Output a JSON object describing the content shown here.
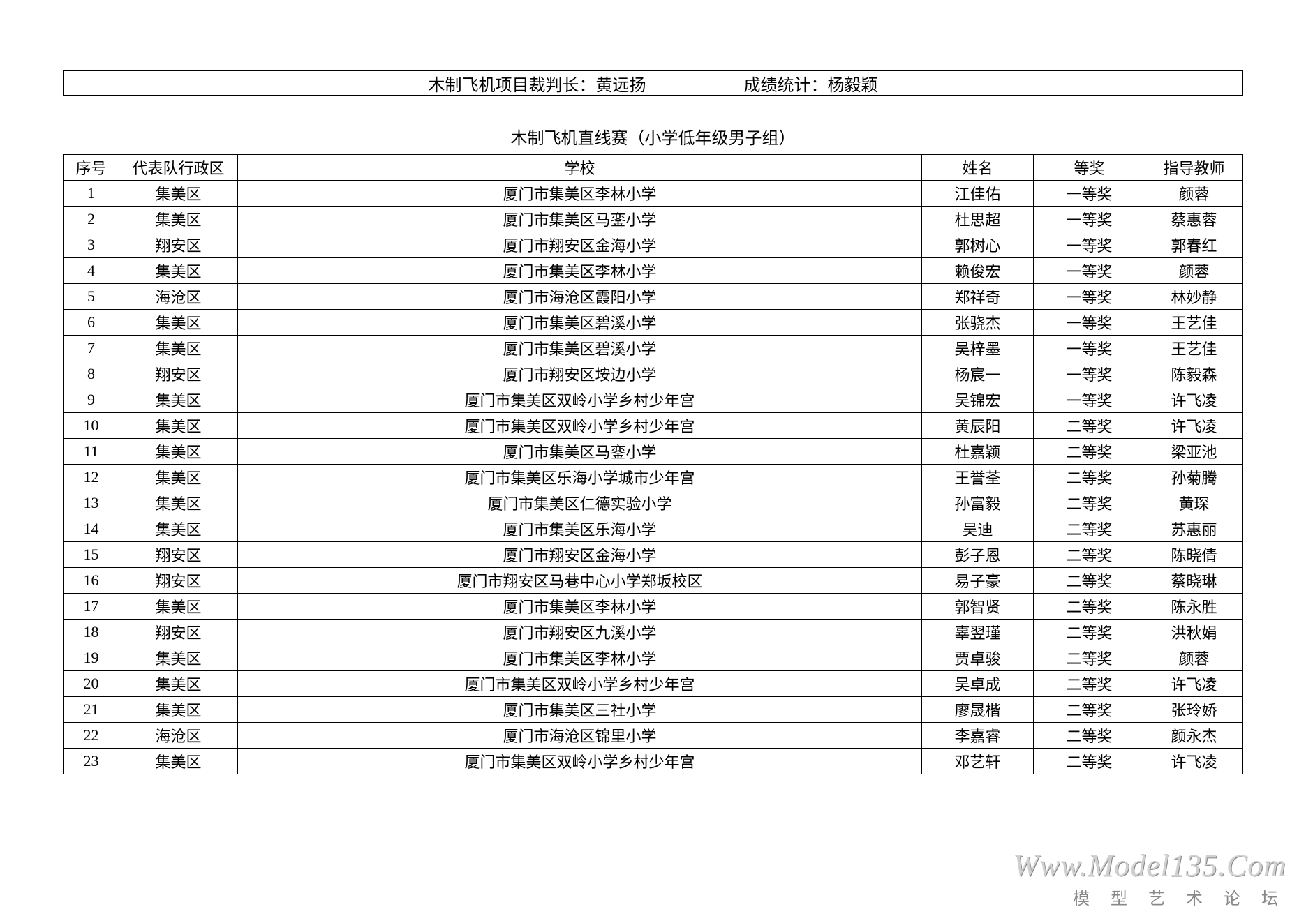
{
  "header": {
    "judge_label": "木制飞机项目裁判长：",
    "judge_name": "黄远扬",
    "stats_label": "成绩统计：",
    "stats_name": "杨毅颖"
  },
  "title": "木制飞机直线赛（小学低年级男子组）",
  "columns": {
    "num": "序号",
    "district": "代表队行政区",
    "school": "学校",
    "name": "姓名",
    "award": "等奖",
    "teacher": "指导教师"
  },
  "rows": [
    {
      "num": "1",
      "district": "集美区",
      "school": "厦门市集美区李林小学",
      "name": "江佳佑",
      "award": "一等奖",
      "teacher": "颜蓉"
    },
    {
      "num": "2",
      "district": "集美区",
      "school": "厦门市集美区马銮小学",
      "name": "杜思超",
      "award": "一等奖",
      "teacher": "蔡惠蓉"
    },
    {
      "num": "3",
      "district": "翔安区",
      "school": "厦门市翔安区金海小学",
      "name": "郭树心",
      "award": "一等奖",
      "teacher": "郭春红"
    },
    {
      "num": "4",
      "district": "集美区",
      "school": "厦门市集美区李林小学",
      "name": "赖俊宏",
      "award": "一等奖",
      "teacher": "颜蓉"
    },
    {
      "num": "5",
      "district": "海沧区",
      "school": "厦门市海沧区霞阳小学",
      "name": "郑祥奇",
      "award": "一等奖",
      "teacher": "林妙静"
    },
    {
      "num": "6",
      "district": "集美区",
      "school": "厦门市集美区碧溪小学",
      "name": "张骁杰",
      "award": "一等奖",
      "teacher": "王艺佳"
    },
    {
      "num": "7",
      "district": "集美区",
      "school": "厦门市集美区碧溪小学",
      "name": "吴梓墨",
      "award": "一等奖",
      "teacher": "王艺佳"
    },
    {
      "num": "8",
      "district": "翔安区",
      "school": "厦门市翔安区垵边小学",
      "name": "杨宸一",
      "award": "一等奖",
      "teacher": "陈毅森"
    },
    {
      "num": "9",
      "district": "集美区",
      "school": "厦门市集美区双岭小学乡村少年宫",
      "name": "吴锦宏",
      "award": "一等奖",
      "teacher": "许飞凌"
    },
    {
      "num": "10",
      "district": "集美区",
      "school": "厦门市集美区双岭小学乡村少年宫",
      "name": "黄辰阳",
      "award": "二等奖",
      "teacher": "许飞凌"
    },
    {
      "num": "11",
      "district": "集美区",
      "school": "厦门市集美区马銮小学",
      "name": "杜嘉颖",
      "award": "二等奖",
      "teacher": "梁亚池"
    },
    {
      "num": "12",
      "district": "集美区",
      "school": "厦门市集美区乐海小学城市少年宫",
      "name": "王誉荃",
      "award": "二等奖",
      "teacher": "孙菊腾"
    },
    {
      "num": "13",
      "district": "集美区",
      "school": "厦门市集美区仁德实验小学",
      "name": "孙富毅",
      "award": "二等奖",
      "teacher": "黄琛"
    },
    {
      "num": "14",
      "district": "集美区",
      "school": "厦门市集美区乐海小学",
      "name": "吴迪",
      "award": "二等奖",
      "teacher": "苏惠丽"
    },
    {
      "num": "15",
      "district": "翔安区",
      "school": "厦门市翔安区金海小学",
      "name": "彭子恩",
      "award": "二等奖",
      "teacher": "陈晓倩"
    },
    {
      "num": "16",
      "district": "翔安区",
      "school": "厦门市翔安区马巷中心小学郑坂校区",
      "name": "易子豪",
      "award": "二等奖",
      "teacher": "蔡晓琳"
    },
    {
      "num": "17",
      "district": "集美区",
      "school": "厦门市集美区李林小学",
      "name": "郭智贤",
      "award": "二等奖",
      "teacher": "陈永胜"
    },
    {
      "num": "18",
      "district": "翔安区",
      "school": "厦门市翔安区九溪小学",
      "name": "辜翌瑾",
      "award": "二等奖",
      "teacher": "洪秋娟"
    },
    {
      "num": "19",
      "district": "集美区",
      "school": "厦门市集美区李林小学",
      "name": "贾卓骏",
      "award": "二等奖",
      "teacher": "颜蓉"
    },
    {
      "num": "20",
      "district": "集美区",
      "school": "厦门市集美区双岭小学乡村少年宫",
      "name": "吴卓成",
      "award": "二等奖",
      "teacher": "许飞凌"
    },
    {
      "num": "21",
      "district": "集美区",
      "school": "厦门市集美区三社小学",
      "name": "廖晟楷",
      "award": "二等奖",
      "teacher": "张玲娇"
    },
    {
      "num": "22",
      "district": "海沧区",
      "school": "厦门市海沧区锦里小学",
      "name": "李嘉睿",
      "award": "二等奖",
      "teacher": "颜永杰"
    },
    {
      "num": "23",
      "district": "集美区",
      "school": "厦门市集美区双岭小学乡村少年宫",
      "name": "邓艺轩",
      "award": "二等奖",
      "teacher": "许飞凌"
    }
  ],
  "watermark": {
    "url": "Www.Model135.Com",
    "cn": "模 型 艺 术 论 坛"
  }
}
